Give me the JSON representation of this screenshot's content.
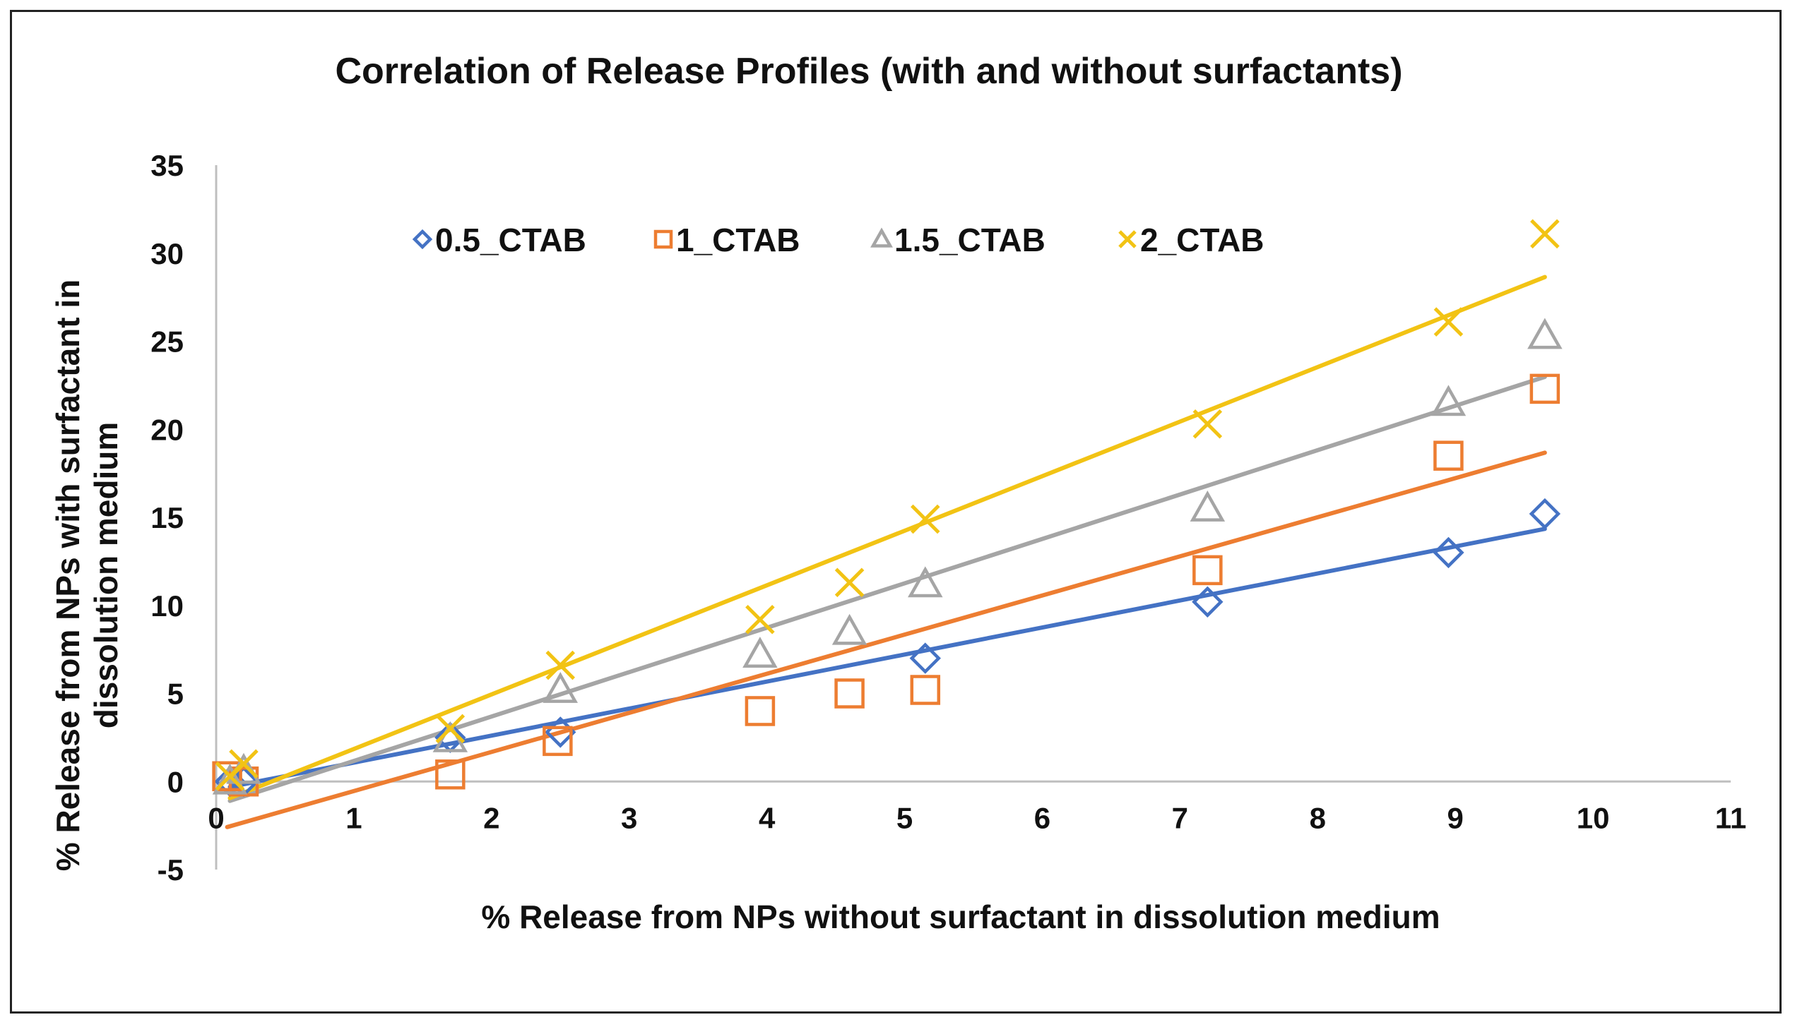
{
  "chart_data": {
    "type": "scatter",
    "title": "Correlation of Release Profiles (with and without surfactants)",
    "xlabel": "% Release from NPs without surfactant in dissolution medium",
    "ylabel_lines": [
      "% Release from NPs  with surfactant  in",
      "dissolution medium"
    ],
    "xlim": [
      0,
      11
    ],
    "ylim": [
      -5,
      35
    ],
    "x_ticks": [
      0,
      1,
      2,
      3,
      4,
      5,
      6,
      7,
      8,
      9,
      10,
      11
    ],
    "y_ticks": [
      -5,
      0,
      5,
      10,
      15,
      20,
      25,
      30,
      35
    ],
    "legend_position": "top",
    "trendline": "linear",
    "series": [
      {
        "name": "0.5_CTAB",
        "marker": "diamond",
        "color": "#4472C4",
        "x": [
          0.1,
          0.2,
          1.7,
          2.5,
          5.15,
          7.2,
          8.95,
          9.65
        ],
        "y": [
          0,
          0,
          2.5,
          2.8,
          7,
          10.2,
          13,
          15.2
        ]
      },
      {
        "name": "1_CTAB",
        "marker": "square",
        "color": "#ED7D31",
        "x": [
          0.08,
          0.2,
          1.7,
          2.48,
          3.95,
          4.6,
          5.15,
          7.2,
          8.95,
          9.65
        ],
        "y": [
          0.3,
          0,
          0.4,
          2.3,
          4,
          5,
          5.2,
          12,
          18.5,
          22.3
        ]
      },
      {
        "name": "1.5_CTAB",
        "marker": "triangle",
        "color": "#A5A5A5",
        "x": [
          0.1,
          0.2,
          1.7,
          2.5,
          3.95,
          4.6,
          5.15,
          7.2,
          8.95,
          9.65
        ],
        "y": [
          0,
          0.6,
          2.4,
          5.2,
          7.2,
          8.5,
          11.2,
          15.5,
          21.5,
          25.3
        ]
      },
      {
        "name": "2_CTAB",
        "marker": "x",
        "color": "#F2C314",
        "x": [
          0.1,
          0.2,
          1.7,
          2.5,
          3.95,
          4.6,
          5.15,
          7.2,
          8.95,
          9.65
        ],
        "y": [
          0.3,
          1,
          3,
          6.6,
          9.2,
          11.3,
          14.9,
          20.3,
          26.1,
          31.1
        ]
      }
    ]
  }
}
